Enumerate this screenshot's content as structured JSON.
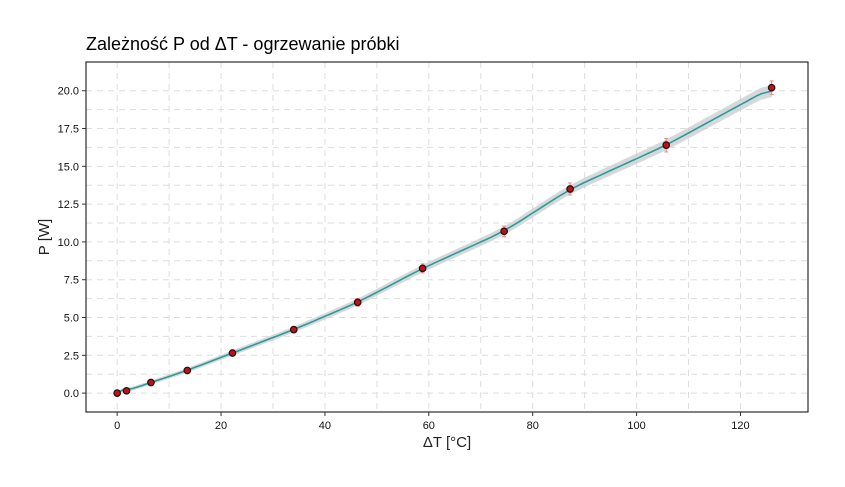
{
  "chart_data": {
    "type": "scatter",
    "title": "Zależność P od ΔT - ogrzewanie próbki",
    "xlabel": "ΔT [°C]",
    "ylabel": "P [W]",
    "xlim": [
      -6,
      133
    ],
    "ylim": [
      -1.25,
      21.9
    ],
    "xticks": [
      0,
      20,
      40,
      60,
      80,
      100,
      120
    ],
    "yticks": [
      0.0,
      2.5,
      5.0,
      7.5,
      10.0,
      12.5,
      15.0,
      17.5,
      20.0
    ],
    "xtick_labels": [
      "0",
      "20",
      "40",
      "60",
      "80",
      "100",
      "120"
    ],
    "ytick_labels": [
      "0.0",
      "2.5",
      "5.0",
      "7.5",
      "10.0",
      "12.5",
      "15.0",
      "17.5",
      "20.0"
    ],
    "grid": true,
    "grid_style": "dashed",
    "legend": "none",
    "points": [
      {
        "x": 0.0,
        "y": 0.0,
        "err": 0.15
      },
      {
        "x": 1.8,
        "y": 0.15,
        "err": 0.15
      },
      {
        "x": 6.5,
        "y": 0.7,
        "err": 0.15
      },
      {
        "x": 13.5,
        "y": 1.5,
        "err": 0.15
      },
      {
        "x": 22.2,
        "y": 2.65,
        "err": 0.18
      },
      {
        "x": 34.0,
        "y": 4.2,
        "err": 0.2
      },
      {
        "x": 46.3,
        "y": 6.0,
        "err": 0.25
      },
      {
        "x": 58.8,
        "y": 8.25,
        "err": 0.3
      },
      {
        "x": 74.5,
        "y": 10.7,
        "err": 0.35
      },
      {
        "x": 87.2,
        "y": 13.5,
        "err": 0.4
      },
      {
        "x": 105.7,
        "y": 16.4,
        "err": 0.45
      },
      {
        "x": 126.0,
        "y": 20.2,
        "err": 0.45
      }
    ],
    "fit_curve": {
      "x": [
        0,
        2,
        5,
        10,
        15,
        20,
        25,
        30,
        35,
        40,
        45,
        50,
        55,
        60,
        65,
        70,
        75,
        80,
        85,
        90,
        95,
        100,
        105,
        110,
        115,
        120,
        126
      ],
      "y": [
        0.0,
        0.18,
        0.5,
        1.05,
        1.63,
        2.25,
        2.88,
        3.54,
        4.21,
        4.9,
        5.61,
        6.33,
        7.06,
        7.79,
        8.54,
        9.29,
        10.05,
        10.82,
        11.59,
        12.37,
        13.15,
        13.94,
        14.73,
        15.53,
        16.33,
        17.13,
        18.1
      ]
    },
    "colors": {
      "point": "#c0111a",
      "point_outline": "#2b1010",
      "error_bar": "#f08a90",
      "fit_line": "#2e9a9a",
      "fit_band": "#c7cccc",
      "grid": "#dddddd",
      "panel_border": "#000000"
    }
  }
}
